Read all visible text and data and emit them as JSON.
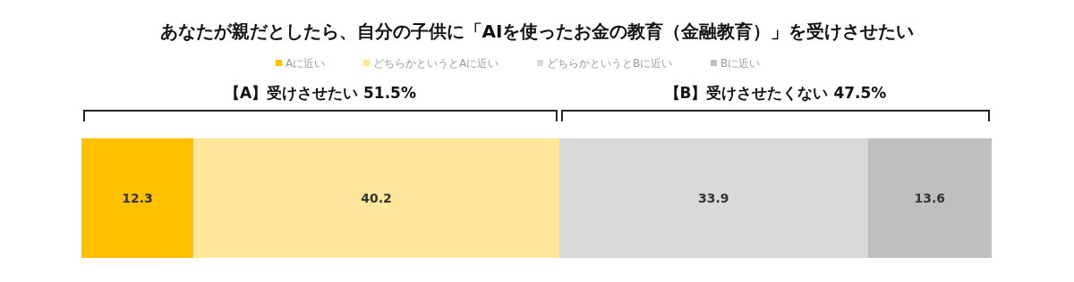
{
  "chart_data": {
    "type": "bar",
    "orientation": "horizontal",
    "stacked": true,
    "title": "あなたが親だとしたら、自分の子供に「AIを使ったお金の教育（金融教育）」を受けさせたい",
    "categories": [
      null
    ],
    "xlim": [
      0,
      100
    ],
    "data_labels": true,
    "legend": "top",
    "series": [
      {
        "name": "Aに近い",
        "color": "#ffc000",
        "values": [
          12.3
        ]
      },
      {
        "name": "どちらかというとAに近い",
        "color": "#ffe699",
        "values": [
          40.2
        ]
      },
      {
        "name": "どちらかというとBに近い",
        "color": "#d9d9d9",
        "values": [
          33.9
        ]
      },
      {
        "name": "Bに近い",
        "color": "#bfbfbf",
        "values": [
          13.6
        ]
      }
    ],
    "annotations": [
      "【A】受けさせたい 51.5%",
      "【B】受けさせたくない 47.5%"
    ]
  }
}
